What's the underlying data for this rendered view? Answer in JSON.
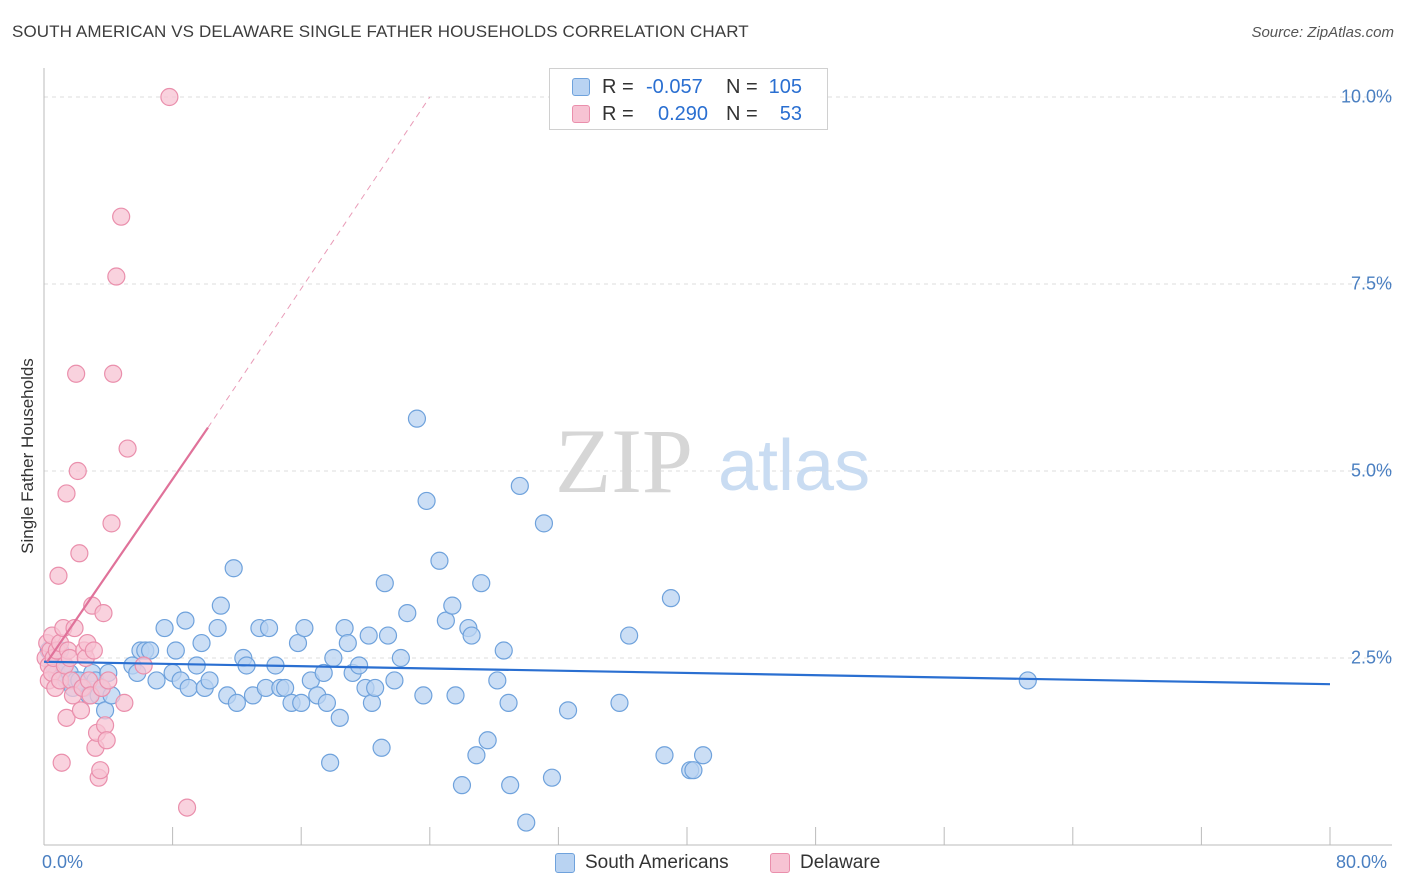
{
  "title": "SOUTH AMERICAN VS DELAWARE SINGLE FATHER HOUSEHOLDS CORRELATION CHART",
  "source": "Source: ZipAtlas.com",
  "watermark": {
    "zip": "ZIP",
    "atlas": "atlas"
  },
  "colors": {
    "blue_fill": "#b9d3f2",
    "blue_stroke": "#6fa2dc",
    "blue_line": "#2a6fd1",
    "pink_fill": "#f7c3d3",
    "pink_stroke": "#ea8fac",
    "pink_line": "#e0729a",
    "axis_text": "#4a7fc1",
    "grid": "#dddddd"
  },
  "legend": {
    "rows": [
      {
        "r_label": "R =",
        "r_value": "-0.057",
        "n_label": "N =",
        "n_value": "105"
      },
      {
        "r_label": "R =",
        "r_value": "0.290",
        "n_label": "N =",
        "n_value": "53"
      }
    ]
  },
  "bottom_legend": {
    "south": "South Americans",
    "delaware": "Delaware"
  },
  "chart_data": {
    "type": "scatter",
    "title": "SOUTH AMERICAN VS DELAWARE SINGLE FATHER HOUSEHOLDS CORRELATION CHART",
    "xlabel": "",
    "ylabel": "Single Father Households",
    "xlim": [
      0,
      80
    ],
    "ylim": [
      0,
      10
    ],
    "x_tick_labels": [
      "0.0%",
      "80.0%"
    ],
    "y_ticks": [
      2.5,
      5.0,
      7.5,
      10.0
    ],
    "y_tick_labels": [
      "2.5%",
      "5.0%",
      "7.5%",
      "10.0%"
    ],
    "grid": "horizontal dashed",
    "series": [
      {
        "name": "South Americans",
        "color": "blue",
        "r": -0.057,
        "n": 105,
        "trend": {
          "x": [
            0,
            80
          ],
          "y": [
            2.45,
            2.15
          ]
        },
        "points": [
          [
            0.3,
            2.6
          ],
          [
            0.5,
            2.5
          ],
          [
            0.6,
            2.4
          ],
          [
            0.8,
            2.3
          ],
          [
            1.0,
            2.6
          ],
          [
            1.2,
            2.4
          ],
          [
            1.4,
            2.2
          ],
          [
            1.6,
            2.3
          ],
          [
            1.8,
            2.1
          ],
          [
            2.0,
            2.2
          ],
          [
            2.2,
            2.2
          ],
          [
            2.5,
            2.1
          ],
          [
            2.8,
            2.0
          ],
          [
            3.0,
            2.3
          ],
          [
            3.2,
            2.2
          ],
          [
            3.4,
            2.0
          ],
          [
            3.6,
            2.1
          ],
          [
            3.8,
            1.8
          ],
          [
            4.0,
            2.3
          ],
          [
            4.2,
            2.0
          ],
          [
            5.5,
            2.4
          ],
          [
            5.8,
            2.3
          ],
          [
            6.0,
            2.6
          ],
          [
            6.3,
            2.6
          ],
          [
            6.6,
            2.6
          ],
          [
            7.0,
            2.2
          ],
          [
            7.5,
            2.9
          ],
          [
            8.0,
            2.3
          ],
          [
            8.2,
            2.6
          ],
          [
            8.5,
            2.2
          ],
          [
            8.8,
            3.0
          ],
          [
            9.0,
            2.1
          ],
          [
            9.5,
            2.4
          ],
          [
            9.8,
            2.7
          ],
          [
            10.0,
            2.1
          ],
          [
            10.3,
            2.2
          ],
          [
            10.8,
            2.9
          ],
          [
            11.0,
            3.2
          ],
          [
            11.4,
            2.0
          ],
          [
            11.8,
            3.7
          ],
          [
            12.0,
            1.9
          ],
          [
            12.4,
            2.5
          ],
          [
            12.6,
            2.4
          ],
          [
            13.0,
            2.0
          ],
          [
            13.4,
            2.9
          ],
          [
            13.8,
            2.1
          ],
          [
            14.0,
            2.9
          ],
          [
            14.4,
            2.4
          ],
          [
            14.7,
            2.1
          ],
          [
            15.0,
            2.1
          ],
          [
            15.4,
            1.9
          ],
          [
            15.8,
            2.7
          ],
          [
            16.0,
            1.9
          ],
          [
            16.2,
            2.9
          ],
          [
            16.6,
            2.2
          ],
          [
            17.0,
            2.0
          ],
          [
            17.4,
            2.3
          ],
          [
            17.6,
            1.9
          ],
          [
            17.8,
            1.1
          ],
          [
            18.0,
            2.5
          ],
          [
            18.4,
            1.7
          ],
          [
            18.7,
            2.9
          ],
          [
            18.9,
            2.7
          ],
          [
            19.2,
            2.3
          ],
          [
            19.6,
            2.4
          ],
          [
            20.0,
            2.1
          ],
          [
            20.2,
            2.8
          ],
          [
            20.4,
            1.9
          ],
          [
            20.6,
            2.1
          ],
          [
            21.0,
            1.3
          ],
          [
            21.2,
            3.5
          ],
          [
            21.4,
            2.8
          ],
          [
            21.8,
            2.2
          ],
          [
            22.2,
            2.5
          ],
          [
            22.6,
            3.1
          ],
          [
            23.2,
            5.7
          ],
          [
            23.6,
            2.0
          ],
          [
            23.8,
            4.6
          ],
          [
            24.6,
            3.8
          ],
          [
            25.0,
            3.0
          ],
          [
            25.4,
            3.2
          ],
          [
            25.6,
            2.0
          ],
          [
            26.0,
            0.8
          ],
          [
            26.4,
            2.9
          ],
          [
            26.6,
            2.8
          ],
          [
            26.9,
            1.2
          ],
          [
            27.2,
            3.5
          ],
          [
            27.6,
            1.4
          ],
          [
            28.2,
            2.2
          ],
          [
            28.6,
            2.6
          ],
          [
            28.9,
            1.9
          ],
          [
            29.0,
            0.8
          ],
          [
            29.6,
            4.8
          ],
          [
            30.0,
            0.3
          ],
          [
            31.1,
            4.3
          ],
          [
            31.6,
            0.9
          ],
          [
            32.6,
            1.8
          ],
          [
            35.8,
            1.9
          ],
          [
            36.4,
            2.8
          ],
          [
            38.6,
            1.2
          ],
          [
            39.0,
            3.3
          ],
          [
            40.2,
            1.0
          ],
          [
            40.4,
            1.0
          ],
          [
            41.0,
            1.2
          ],
          [
            61.2,
            2.2
          ]
        ]
      },
      {
        "name": "Delaware",
        "color": "pink",
        "r": 0.29,
        "n": 53,
        "trend": {
          "x": [
            0.2,
            10.2
          ],
          "y": [
            2.45,
            5.58
          ]
        },
        "trend_extension": {
          "x": [
            10.2,
            24.0
          ],
          "y": [
            5.58,
            10.0
          ]
        },
        "points": [
          [
            0.1,
            2.5
          ],
          [
            0.2,
            2.7
          ],
          [
            0.3,
            2.4
          ],
          [
            0.3,
            2.2
          ],
          [
            0.4,
            2.6
          ],
          [
            0.5,
            2.3
          ],
          [
            0.5,
            2.8
          ],
          [
            0.6,
            2.5
          ],
          [
            0.7,
            2.1
          ],
          [
            0.8,
            2.6
          ],
          [
            0.9,
            3.6
          ],
          [
            1.0,
            2.7
          ],
          [
            1.0,
            2.2
          ],
          [
            1.1,
            1.1
          ],
          [
            1.2,
            2.9
          ],
          [
            1.3,
            2.4
          ],
          [
            1.4,
            4.7
          ],
          [
            1.4,
            1.7
          ],
          [
            1.5,
            2.6
          ],
          [
            1.6,
            2.5
          ],
          [
            1.7,
            2.2
          ],
          [
            1.8,
            2.0
          ],
          [
            1.9,
            2.9
          ],
          [
            2.0,
            6.3
          ],
          [
            2.1,
            5.0
          ],
          [
            2.2,
            3.9
          ],
          [
            2.3,
            1.8
          ],
          [
            2.4,
            2.1
          ],
          [
            2.5,
            2.6
          ],
          [
            2.6,
            2.5
          ],
          [
            2.7,
            2.7
          ],
          [
            2.8,
            2.2
          ],
          [
            2.9,
            2.0
          ],
          [
            3.0,
            3.2
          ],
          [
            3.1,
            2.6
          ],
          [
            3.2,
            1.3
          ],
          [
            3.3,
            1.5
          ],
          [
            3.4,
            0.9
          ],
          [
            3.5,
            1.0
          ],
          [
            3.6,
            2.1
          ],
          [
            3.7,
            3.1
          ],
          [
            3.8,
            1.6
          ],
          [
            3.9,
            1.4
          ],
          [
            4.0,
            2.2
          ],
          [
            4.2,
            4.3
          ],
          [
            4.3,
            6.3
          ],
          [
            4.5,
            7.6
          ],
          [
            4.8,
            8.4
          ],
          [
            5.0,
            1.9
          ],
          [
            5.2,
            5.3
          ],
          [
            6.2,
            2.4
          ],
          [
            7.8,
            10.0
          ],
          [
            8.9,
            0.5
          ]
        ]
      }
    ]
  }
}
